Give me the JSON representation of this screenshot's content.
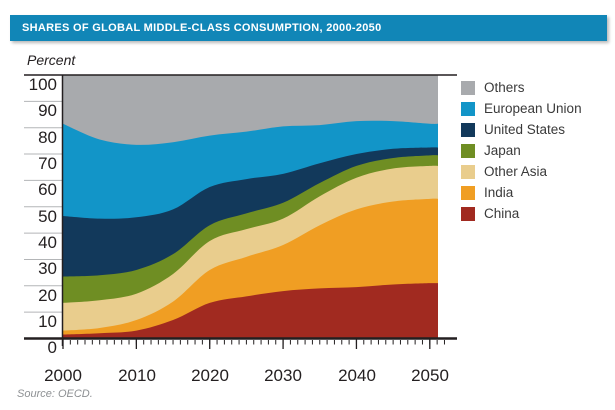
{
  "title": "SHARES OF GLOBAL MIDDLE-CLASS CONSUMPTION, 2000-2050",
  "y_axis_unit": "Percent",
  "source": "Source: OECD.",
  "colors": {
    "title_bar": "#1186b7",
    "title_text": "#ffffff",
    "axis_line": "#231f20",
    "margin_rule": "#b3b5b7",
    "background": "#ffffff"
  },
  "chart_data": {
    "type": "area",
    "stacked": true,
    "title": "SHARES OF GLOBAL MIDDLE-CLASS CONSUMPTION, 2000-2050",
    "ylabel": "Percent",
    "ylim": [
      0,
      100
    ],
    "xlim": [
      2000,
      2050
    ],
    "grid": false,
    "legend_position": "right",
    "x": [
      2000,
      2005,
      2010,
      2015,
      2020,
      2025,
      2030,
      2035,
      2040,
      2045,
      2050
    ],
    "x_tick_labels": [
      "2000",
      "2010",
      "2020",
      "2030",
      "2040",
      "2050"
    ],
    "y_tick_labels": [
      "100",
      "90",
      "80",
      "70",
      "60",
      "50",
      "40",
      "30",
      "20",
      "10",
      "0"
    ],
    "series": [
      {
        "name": "China",
        "color": "#a12a20",
        "values": [
          1.5,
          2,
          3,
          7,
          13.5,
          16,
          18,
          19,
          19.5,
          20.5,
          21
        ]
      },
      {
        "name": "India",
        "color": "#f09e23",
        "values": [
          1.5,
          2,
          4,
          7,
          12.5,
          15,
          17.5,
          24,
          29.5,
          31.5,
          32
        ]
      },
      {
        "name": "Other Asia",
        "color": "#e9cd8d",
        "values": [
          10.5,
          10.5,
          10,
          10.5,
          11,
          10.5,
          10,
          11,
          12,
          12.5,
          12.5
        ]
      },
      {
        "name": "Japan",
        "color": "#6f8e23",
        "values": [
          10,
          9.5,
          9,
          7.5,
          6,
          6,
          6,
          5,
          4.5,
          4,
          4
        ]
      },
      {
        "name": "United States",
        "color": "#12395b",
        "values": [
          23,
          21.5,
          20,
          17,
          14.5,
          13,
          11,
          7.5,
          4.5,
          3.5,
          3
        ]
      },
      {
        "name": "European Union",
        "color": "#1295c8",
        "values": [
          35,
          30,
          27.5,
          25.5,
          19.5,
          18,
          18,
          14.5,
          12.5,
          10.5,
          9
        ]
      },
      {
        "name": "Others",
        "color": "#a8aaad",
        "values": [
          18.5,
          24.5,
          26.5,
          25.5,
          23,
          21.5,
          19.5,
          19,
          17.5,
          17.5,
          18.5
        ]
      }
    ],
    "legend_order_top_to_bottom": [
      "Others",
      "European Union",
      "United States",
      "Japan",
      "Other Asia",
      "India",
      "China"
    ]
  }
}
